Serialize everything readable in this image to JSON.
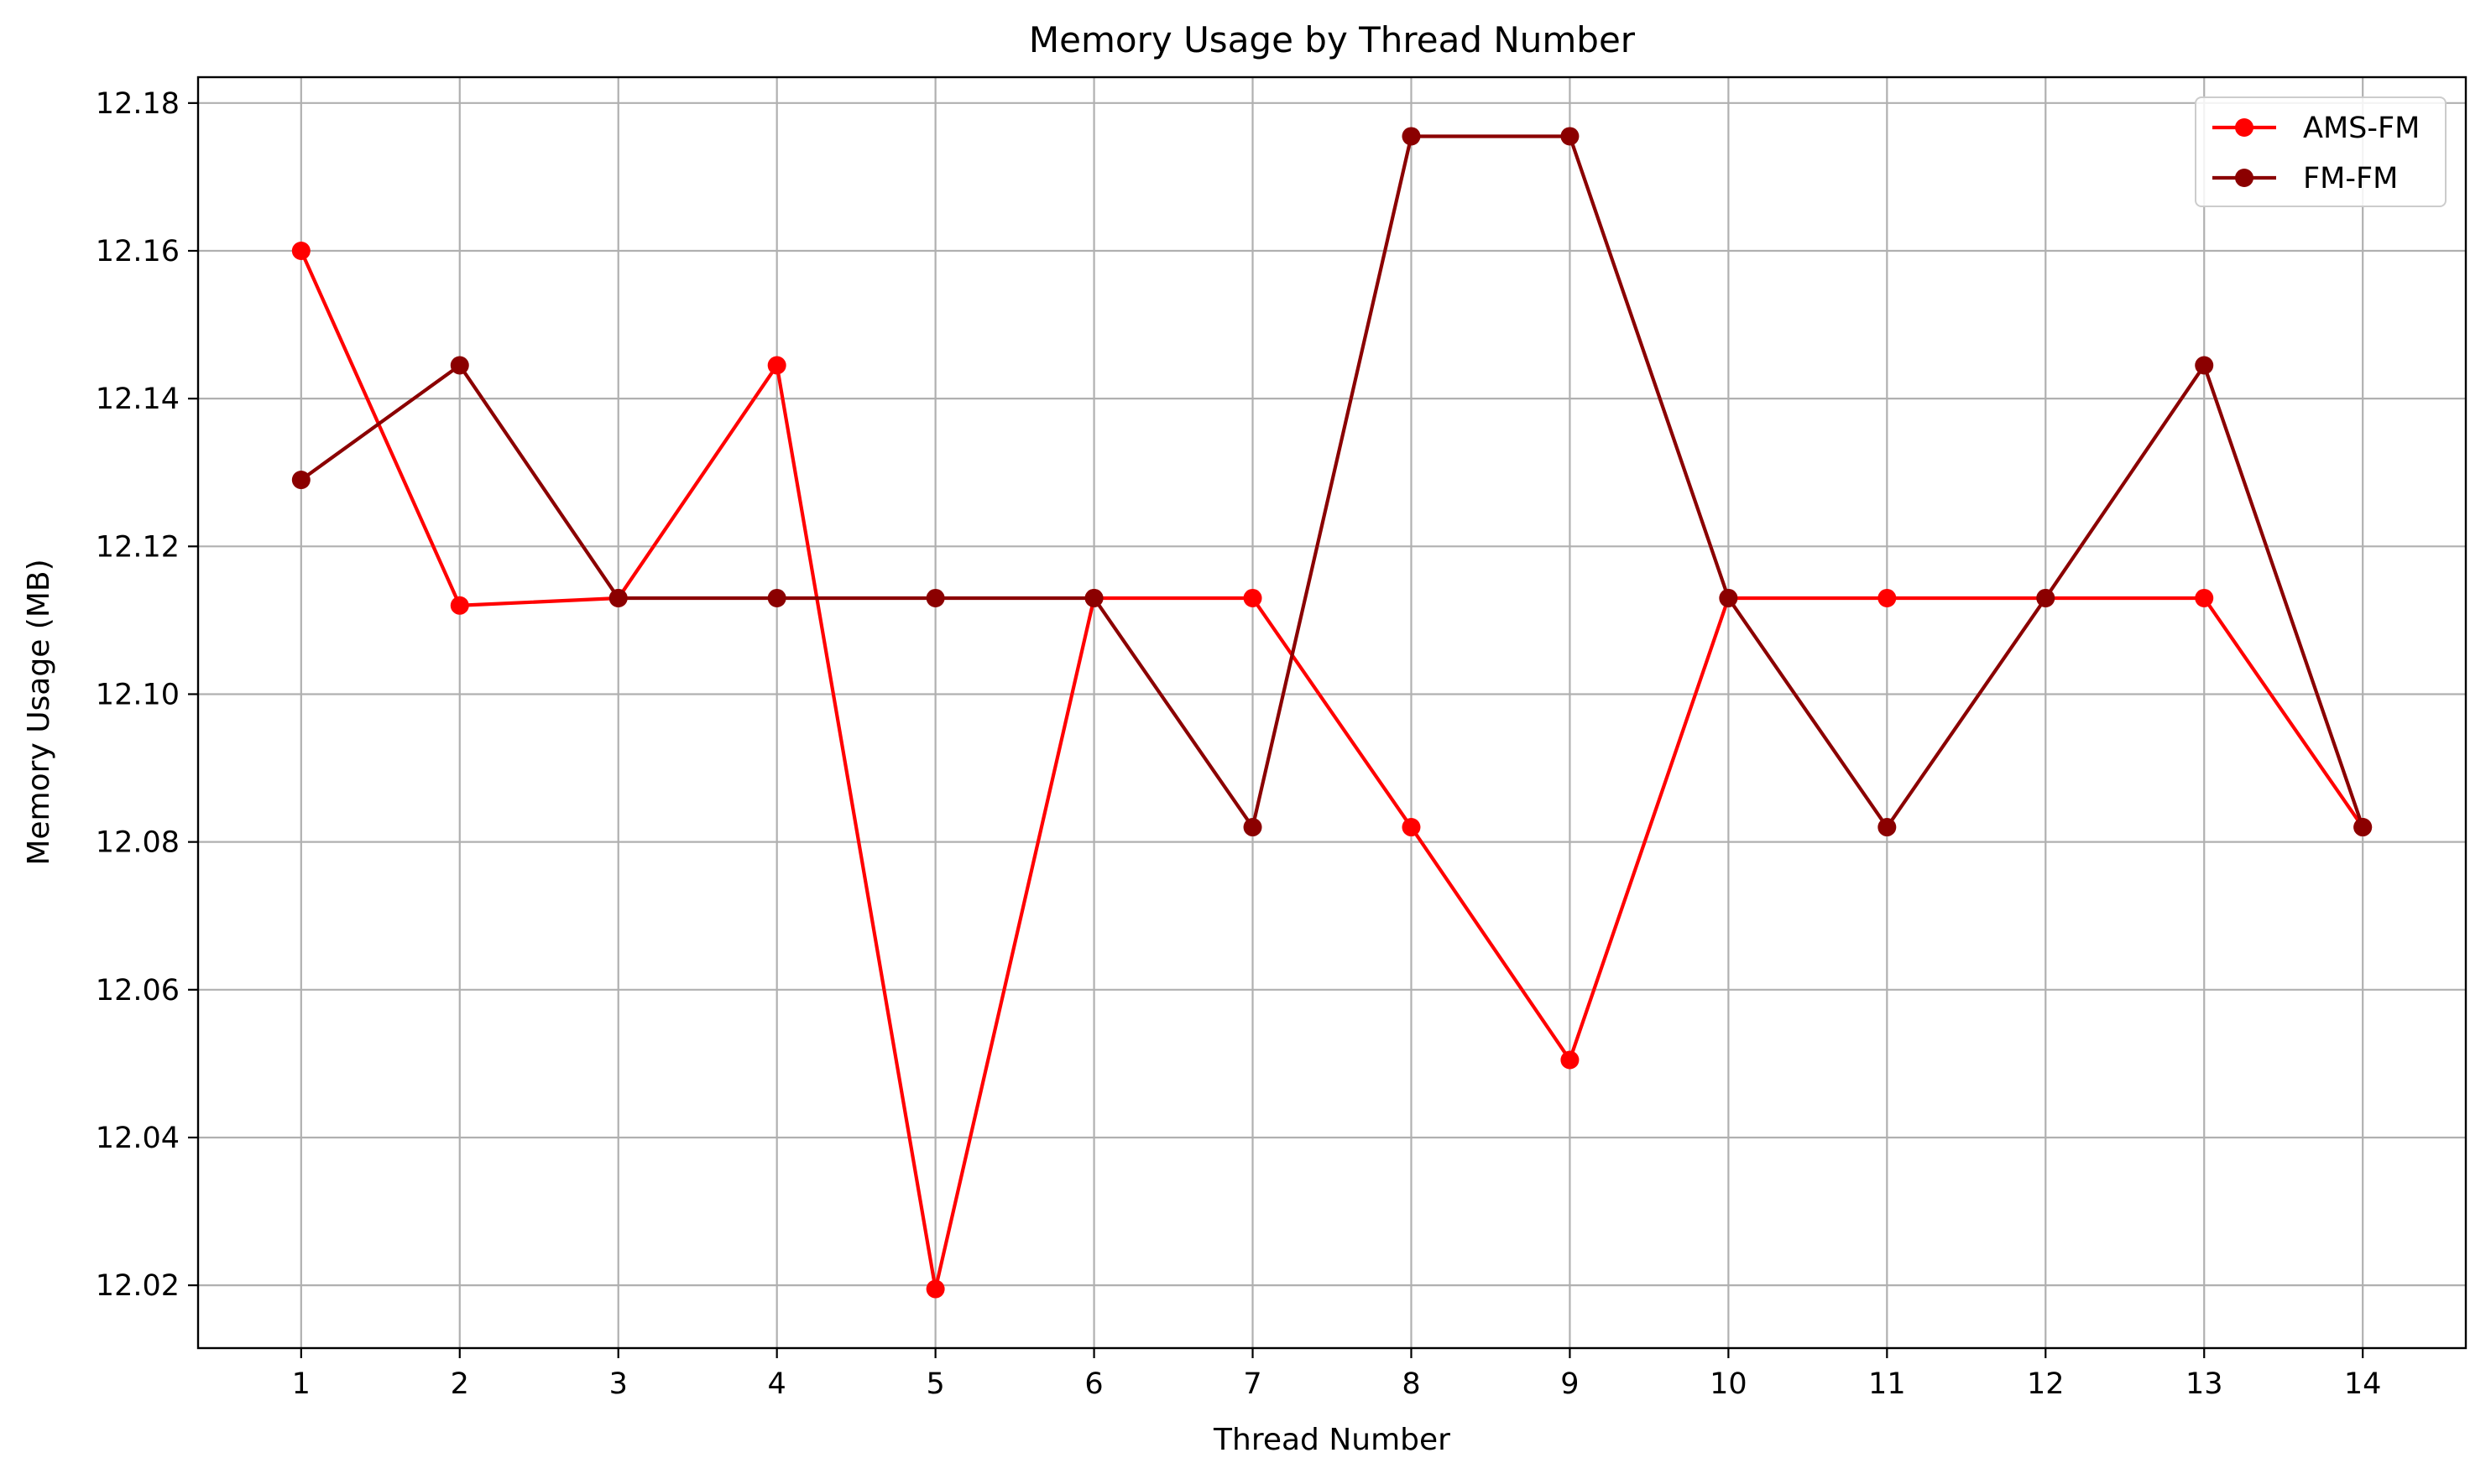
{
  "chart_data": {
    "type": "line",
    "title": "Memory Usage by Thread Number",
    "xlabel": "Thread Number",
    "ylabel": "Memory Usage (MB)",
    "x": [
      1,
      2,
      3,
      4,
      5,
      6,
      7,
      8,
      9,
      10,
      11,
      12,
      13,
      14
    ],
    "x_ticks": [
      "1",
      "2",
      "3",
      "4",
      "5",
      "6",
      "7",
      "8",
      "9",
      "10",
      "11",
      "12",
      "13",
      "14"
    ],
    "xlim": [
      0.35,
      14.65
    ],
    "ylim": [
      12.0115,
      12.1835
    ],
    "y_ticks": [
      12.02,
      12.04,
      12.06,
      12.08,
      12.1,
      12.12,
      12.14,
      12.16,
      12.18
    ],
    "y_tick_labels": [
      "12.02",
      "12.04",
      "12.06",
      "12.08",
      "12.10",
      "12.12",
      "12.14",
      "12.16",
      "12.18"
    ],
    "grid": true,
    "legend_position": "top-right",
    "series": [
      {
        "name": "AMS-FM",
        "color": "#ff0000",
        "marker": "circle",
        "values": [
          12.16,
          12.112,
          12.113,
          12.1445,
          12.0195,
          12.113,
          12.113,
          12.082,
          12.0505,
          12.113,
          12.113,
          12.113,
          12.113,
          12.082
        ]
      },
      {
        "name": "FM-FM",
        "color": "#8b0000",
        "marker": "circle",
        "values": [
          12.129,
          12.1445,
          12.113,
          12.113,
          12.113,
          12.113,
          12.082,
          12.1755,
          12.1755,
          12.113,
          12.082,
          12.113,
          12.1445,
          12.082
        ]
      }
    ]
  }
}
